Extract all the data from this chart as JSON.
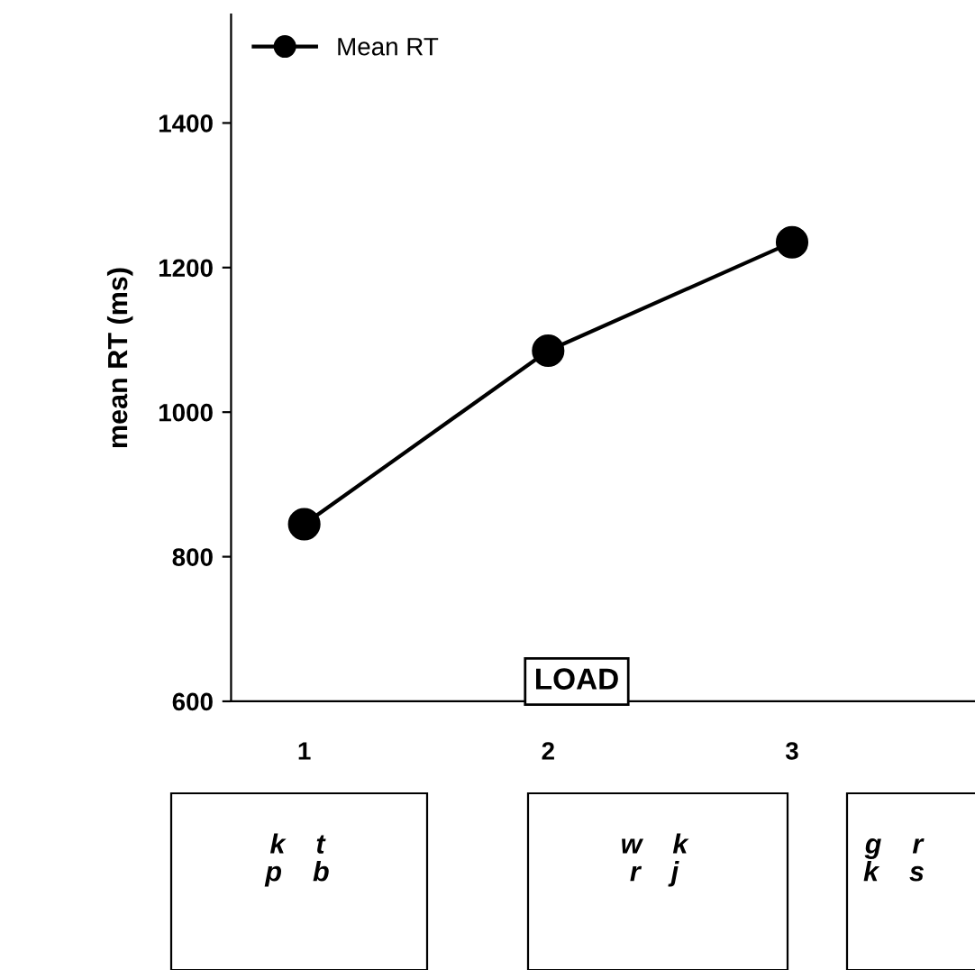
{
  "chart_data": {
    "type": "line",
    "xlabel": "LOAD",
    "ylabel": "mean RT (ms)",
    "categories": [
      "1",
      "2",
      "3"
    ],
    "series": [
      {
        "name": "Mean RT",
        "color": "#000000",
        "values": [
          845,
          1085,
          1235
        ]
      }
    ],
    "ylim": [
      600,
      1550
    ],
    "yticks": [
      600,
      800,
      1000,
      1200,
      1400
    ],
    "marker": "circle",
    "line_style": "solid",
    "grid": false,
    "legend": "top left",
    "annotations": [
      "k    t\np    b",
      "w    k\nr    j",
      "g    r\nk    s"
    ]
  }
}
